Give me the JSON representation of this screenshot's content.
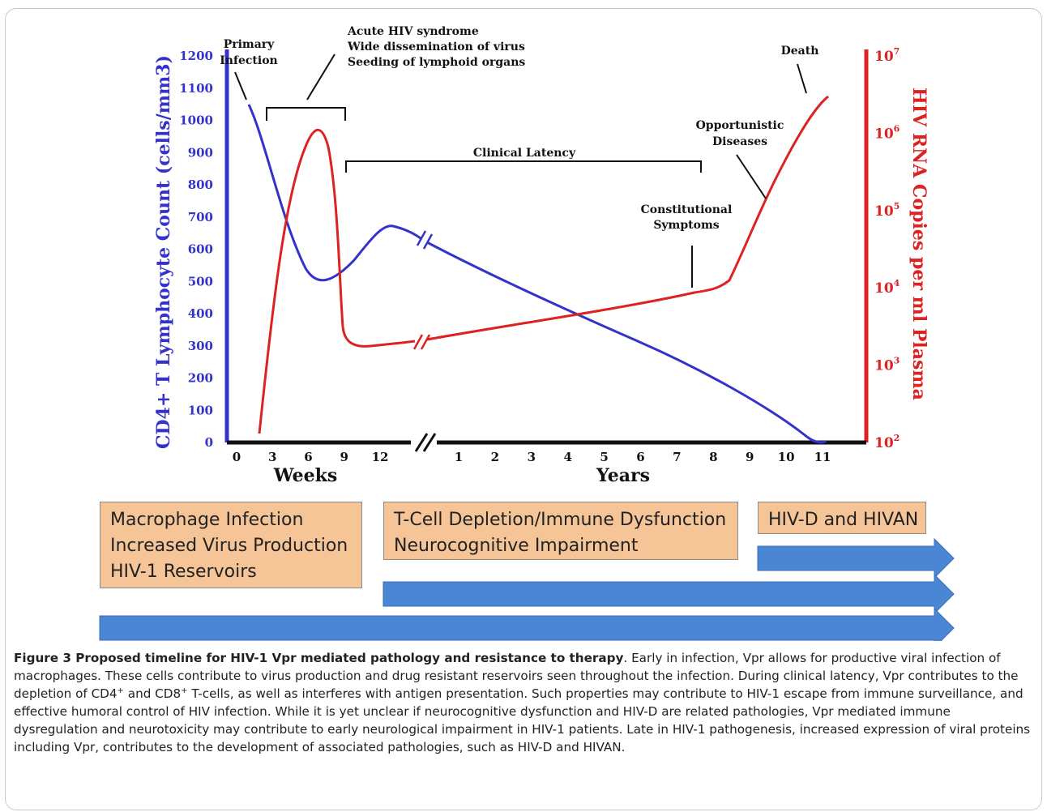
{
  "chart_data": {
    "type": "line",
    "x_weeks_ticks": [
      "0",
      "3",
      "6",
      "9",
      "12"
    ],
    "x_years_ticks": [
      "1",
      "2",
      "3",
      "4",
      "5",
      "6",
      "7",
      "8",
      "9",
      "10",
      "11"
    ],
    "xlabel_weeks": "Weeks",
    "xlabel_years": "Years",
    "ylabel_left": "CD4+ T Lymphocyte Count (cells/mm3)",
    "ylabel_right": "HIV RNA Copies per ml Plasma",
    "ylim_left": [
      0,
      1200
    ],
    "yticks_left": [
      "0",
      "100",
      "200",
      "300",
      "400",
      "500",
      "600",
      "700",
      "800",
      "900",
      "1000",
      "1100",
      "1200"
    ],
    "yticks_right": [
      "10^2",
      "10^3",
      "10^4",
      "10^5",
      "10^6",
      "10^7"
    ],
    "ylim_right_log10": [
      2,
      7
    ],
    "series": [
      {
        "name": "CD4+ T Lymphocyte Count",
        "color": "#3333cc",
        "axis": "left",
        "points": [
          {
            "x": "week 2",
            "y": 1040
          },
          {
            "x": "week 4",
            "y": 750
          },
          {
            "x": "week 6",
            "y": 500
          },
          {
            "x": "week 9",
            "y": 560
          },
          {
            "x": "week 12",
            "y": 670
          },
          {
            "x": "year 1",
            "y": 620
          },
          {
            "x": "year 4",
            "y": 390
          },
          {
            "x": "year 8",
            "y": 140
          },
          {
            "x": "year 10",
            "y": 5
          },
          {
            "x": "year 11",
            "y": 10
          }
        ]
      },
      {
        "name": "HIV RNA Copies per ml Plasma",
        "color": "#dd2222",
        "axis": "right",
        "points": [
          {
            "x": "week 2",
            "y_log10": 2.2
          },
          {
            "x": "week 4",
            "y_log10": 4.2
          },
          {
            "x": "week 6.5",
            "y_log10": 6.0
          },
          {
            "x": "week 8",
            "y_log10": 3.7
          },
          {
            "x": "week 9",
            "y_log10": 3.0
          },
          {
            "x": "week 12",
            "y_log10": 3.0
          },
          {
            "x": "year 4",
            "y_log10": 3.5
          },
          {
            "x": "year 8",
            "y_log10": 4.0
          },
          {
            "x": "year 9",
            "y_log10": 4.3
          },
          {
            "x": "year 10",
            "y_log10": 5.5
          },
          {
            "x": "year 11",
            "y_log10": 6.7
          }
        ]
      }
    ],
    "annotations": {
      "primary_infection": [
        "Primary",
        "Infection"
      ],
      "acute": [
        "Acute HIV syndrome",
        "Wide dissemination of virus",
        "Seeding of lymphoid organs"
      ],
      "clinical_latency": "Clinical Latency",
      "constitutional": [
        "Constitutional",
        "Symptoms"
      ],
      "opportunistic": [
        "Opportunistic",
        "Diseases"
      ],
      "death": "Death"
    }
  },
  "colors": {
    "cd4": "#3333cc",
    "rna": "#dd2222",
    "box_fill": "#f6c597",
    "arrow": "#4a86d4"
  },
  "phases": [
    {
      "lines": [
        "Macrophage Infection",
        "Increased Virus Production",
        "HIV-1 Reservoirs"
      ]
    },
    {
      "lines": [
        "T-Cell Depletion/Immune Dysfunction",
        "Neurocognitive Impairment"
      ]
    },
    {
      "lines": [
        "HIV-D and HIVAN"
      ]
    }
  ],
  "caption": {
    "bold": "Figure 3 Proposed timeline for HIV-1 Vpr mediated pathology and resistance to therapy",
    "text": ". Early in infection, Vpr allows for productive viral infection of macrophages. These cells contribute to virus production and drug resistant reservoirs seen throughout the infection. During clinical latency, Vpr contributes to the depletion of CD4",
    "sup1": "+",
    "text2": " and CD8",
    "sup2": "+",
    "text3": " T-cells, as well as interferes with antigen presentation. Such properties may contribute to HIV-1 escape from immune surveillance, and effective humoral control of HIV infection. While it is yet unclear if neurocognitive dysfunction and HIV-D are related pathologies, Vpr mediated immune dysregulation and neurotoxicity may contribute to early neurological impairment in HIV-1 patients. Late in HIV-1 pathogenesis, increased expression of viral proteins including Vpr, contributes to the development of associated pathologies, such as HIV-D and HIVAN."
  }
}
